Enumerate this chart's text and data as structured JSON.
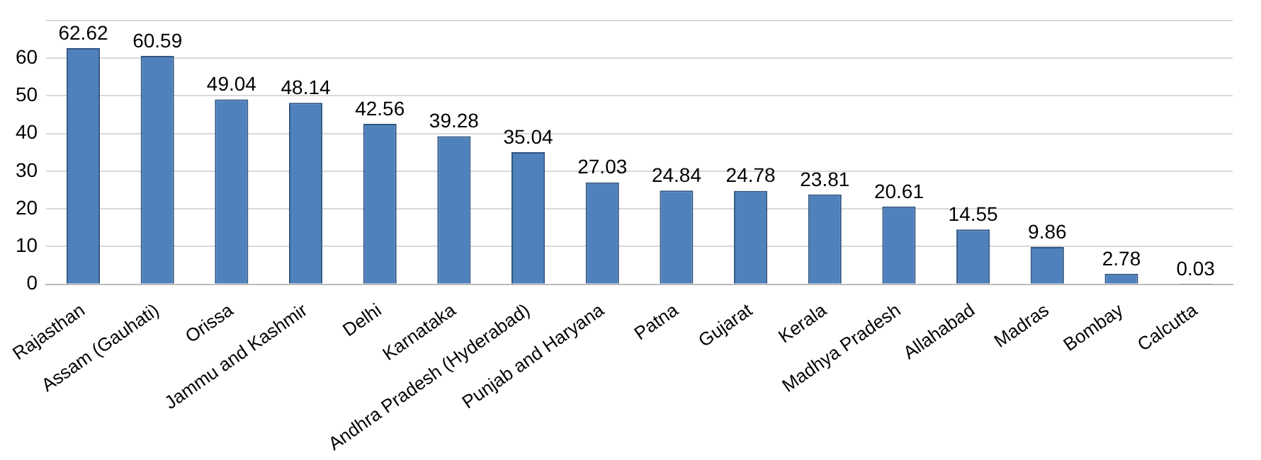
{
  "chart_data": {
    "type": "bar",
    "categories": [
      "Rajasthan",
      "Assam (Gauhati)",
      "Orissa",
      "Jammu and Kashmir",
      "Delhi",
      "Karnataka",
      "Andhra Pradesh (Hyderabad)",
      "Punjab and Haryana",
      "Patna",
      "Gujarat",
      "Kerala",
      "Madhya Pradesh",
      "Allahabad",
      "Madras",
      "Bombay",
      "Calcutta"
    ],
    "values": [
      62.62,
      60.59,
      49.04,
      48.14,
      42.56,
      39.28,
      35.04,
      27.03,
      24.84,
      24.78,
      23.81,
      20.61,
      14.55,
      9.86,
      2.78,
      0.03
    ],
    "color": "#4f81bd",
    "ylim": [
      0,
      70
    ],
    "yticks": [
      0,
      10,
      20,
      30,
      40,
      50,
      60,
      {
        "value": 70,
        "label": null
      }
    ],
    "grid": "y",
    "data_labels": true,
    "legend": false
  }
}
